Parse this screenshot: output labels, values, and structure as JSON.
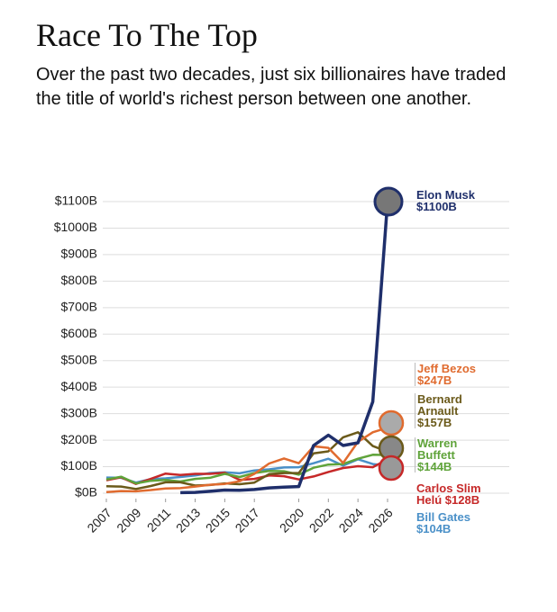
{
  "chart_data": {
    "type": "line",
    "title": "Race To The Top",
    "subtitle": "Over the past two decades, just six billionaires have traded the title of world's richest person between one another.",
    "x": [
      2007,
      2008,
      2009,
      2010,
      2011,
      2012,
      2013,
      2014,
      2015,
      2016,
      2017,
      2018,
      2019,
      2020,
      2021,
      2022,
      2023,
      2024,
      2025,
      2026
    ],
    "xlim": [
      2007,
      2026
    ],
    "xticks": [
      2007,
      2009,
      2011,
      2013,
      2015,
      2017,
      2020,
      2022,
      2024,
      2026
    ],
    "ylim": [
      0,
      1100
    ],
    "yticks": [
      {
        "value": 0,
        "label": "$0B"
      },
      {
        "value": 100,
        "label": "$100B"
      },
      {
        "value": 200,
        "label": "$200B"
      },
      {
        "value": 300,
        "label": "$300B"
      },
      {
        "value": 400,
        "label": "$400B"
      },
      {
        "value": 500,
        "label": "$500B"
      },
      {
        "value": 600,
        "label": "$600B"
      },
      {
        "value": 700,
        "label": "$700B"
      },
      {
        "value": 800,
        "label": "$800B"
      },
      {
        "value": 900,
        "label": "$900B"
      },
      {
        "value": 1000,
        "label": "$1000B"
      },
      {
        "value": 1100,
        "label": "$1100B"
      }
    ],
    "grid": true,
    "series": [
      {
        "name": "Bill Gates",
        "color": "#4a90c8",
        "end_label": "$104B",
        "values": [
          59,
          58,
          40,
          53,
          56,
          61,
          67,
          76,
          79,
          75,
          86,
          90,
          97,
          98,
          113,
          130,
          104,
          128,
          110,
          104
        ]
      },
      {
        "name": "Carlos Slim Helú",
        "color": "#c62828",
        "end_label": "$128B",
        "values": [
          49,
          60,
          35,
          54,
          74,
          69,
          73,
          73,
          77,
          50,
          54,
          67,
          64,
          52,
          63,
          80,
          95,
          102,
          98,
          128
        ]
      },
      {
        "name": "Warren Buffett",
        "color": "#5fa33a",
        "end_label": "$144B",
        "values": [
          52,
          62,
          37,
          47,
          50,
          44,
          54,
          58,
          73,
          61,
          76,
          84,
          83,
          70,
          96,
          108,
          110,
          130,
          145,
          144
        ]
      },
      {
        "name": "Bernard Arnault",
        "color": "#6b5a1a",
        "end_label": "$157B",
        "values": [
          26,
          25,
          16,
          27,
          41,
          41,
          29,
          31,
          37,
          34,
          40,
          72,
          76,
          76,
          150,
          158,
          211,
          230,
          178,
          157
        ]
      },
      {
        "name": "Jeff Bezos",
        "color": "#e06b2f",
        "end_label": "$247B",
        "values": [
          4,
          8,
          7,
          12,
          18,
          19,
          25,
          32,
          35,
          45,
          73,
          112,
          131,
          113,
          177,
          171,
          114,
          194,
          230,
          247
        ]
      },
      {
        "name": "Elon Musk",
        "color": "#1f2f6b",
        "end_label": "$1100B",
        "values": [
          null,
          null,
          null,
          null,
          null,
          2,
          3,
          7,
          12,
          11,
          14,
          20,
          23,
          25,
          180,
          219,
          180,
          190,
          345,
          1100
        ]
      }
    ]
  }
}
